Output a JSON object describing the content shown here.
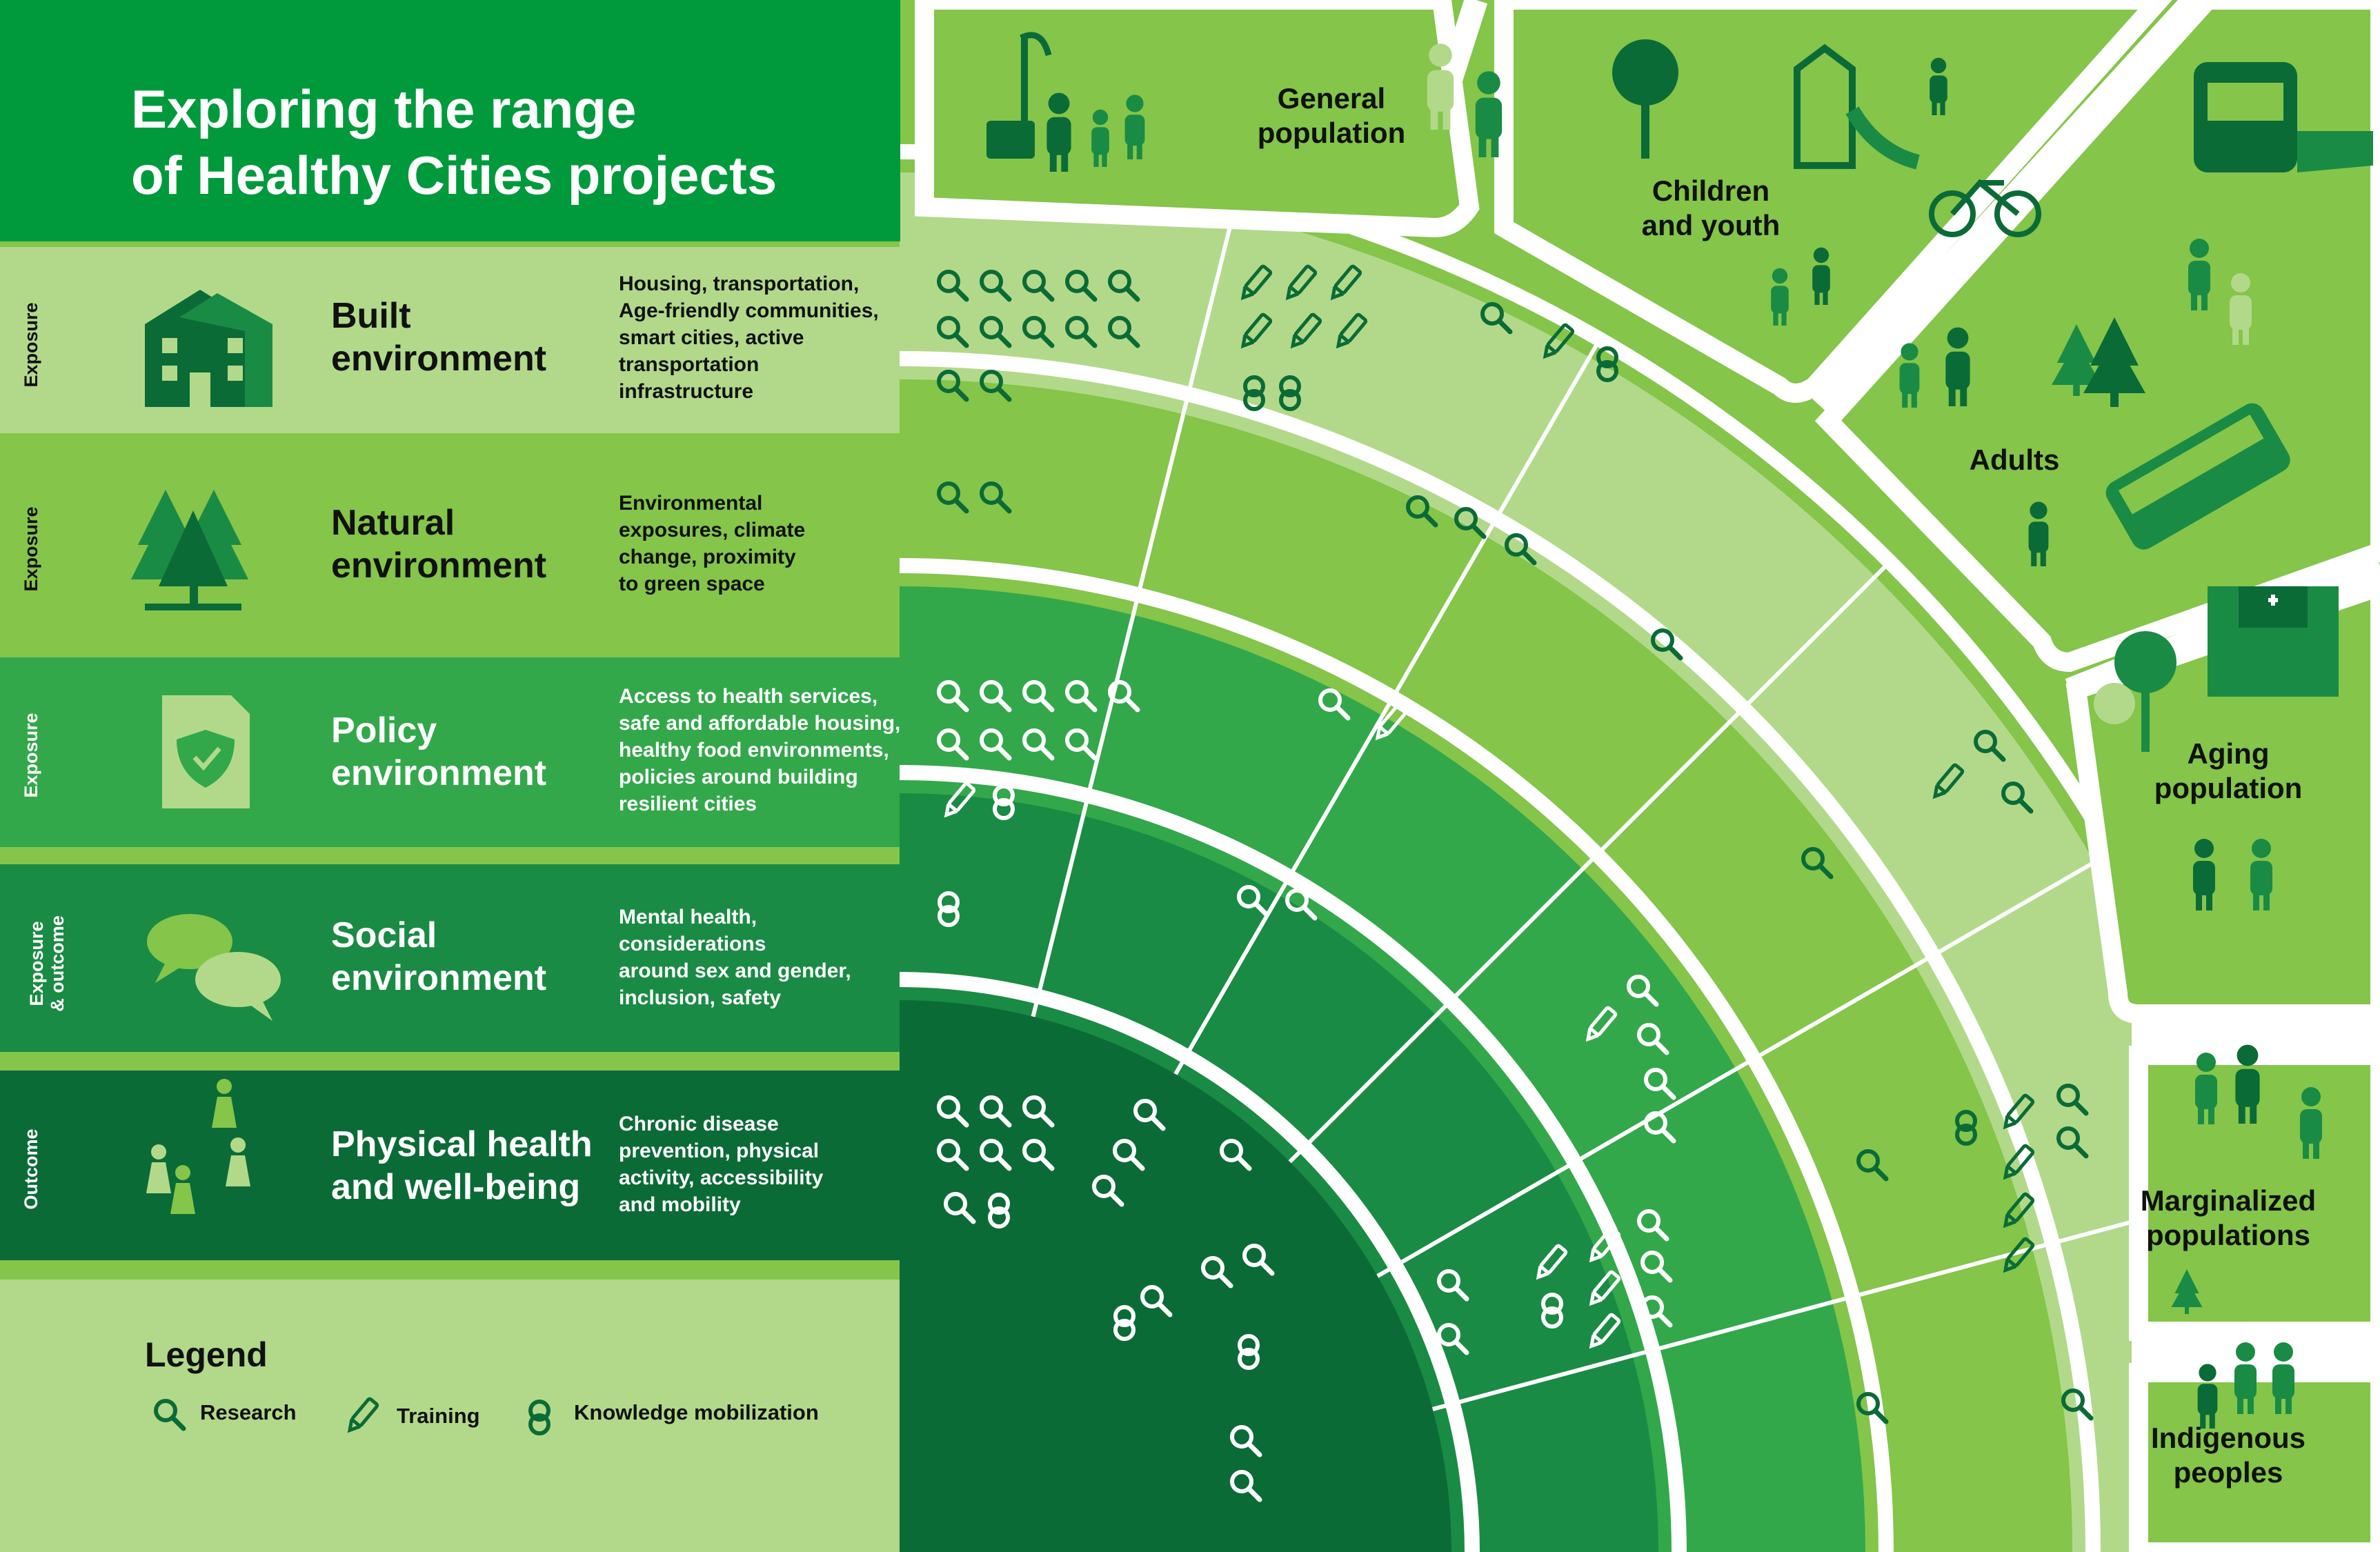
{
  "title": "Exploring the range of Healthy Cities projects",
  "title_lines": [
    "Exploring the range",
    "of Healthy Cities projects"
  ],
  "colors": {
    "band_built": "#b2d98a",
    "band_natural": "#84c54a",
    "band_policy": "#32a84a",
    "band_social": "#1a8b44",
    "band_physical": "#0b6b37",
    "title_bg": "#009a3d",
    "icon_dark": "#0b6b37",
    "icon_mid": "#1a8b44"
  },
  "rows": [
    {
      "axis": "Exposure",
      "name": [
        "Built",
        "environment"
      ],
      "icon": "building-icon",
      "desc": [
        "Housing, transportation,",
        "Age-friendly communities,",
        "smart cities, active",
        "transportation",
        "infrastructure"
      ]
    },
    {
      "axis": "Exposure",
      "name": [
        "Natural",
        "environment"
      ],
      "icon": "trees-icon",
      "desc": [
        "Environmental",
        "exposures, climate",
        "change, proximity",
        "to green space"
      ]
    },
    {
      "axis": "Exposure",
      "name": [
        "Policy",
        "environment"
      ],
      "icon": "shield-document-icon",
      "desc": [
        "Access to health services,",
        "safe and affordable housing,",
        "healthy food environments,",
        "policies around building",
        "resilient cities"
      ]
    },
    {
      "axis": "Exposure\n& outcome",
      "name": [
        "Social",
        "environment"
      ],
      "icon": "speech-bubbles-icon",
      "desc": [
        "Mental health,",
        "considerations",
        "around sex and gender,",
        "inclusion, safety"
      ]
    },
    {
      "axis": "Outcome",
      "name": [
        "Physical health",
        "and well-being"
      ],
      "icon": "active-people-icon",
      "desc": [
        "Chronic disease",
        "prevention, physical",
        "activity, accessibility",
        "and mobility"
      ]
    }
  ],
  "populations": [
    {
      "label": [
        "General",
        "population"
      ],
      "icon": "general-population-icon"
    },
    {
      "label": [
        "Children",
        "and youth"
      ],
      "icon": "children-icon"
    },
    {
      "label": [
        "Adults"
      ],
      "icon": "adults-icon"
    },
    {
      "label": [
        "Aging",
        "population"
      ],
      "icon": "aging-population-icon"
    },
    {
      "label": [
        "Marginalized",
        "populations"
      ],
      "icon": "marginalized-icon"
    },
    {
      "label": [
        "Indigenous",
        "peoples"
      ],
      "icon": "indigenous-icon"
    }
  ],
  "legend": {
    "title": "Legend",
    "items": [
      {
        "label": "Research",
        "icon": "research-magnifier-icon"
      },
      {
        "label": "Training",
        "icon": "training-pencil-icon"
      },
      {
        "label": "Knowledge mobilization",
        "icon": "knowledge-mobilization-icon"
      }
    ]
  }
}
